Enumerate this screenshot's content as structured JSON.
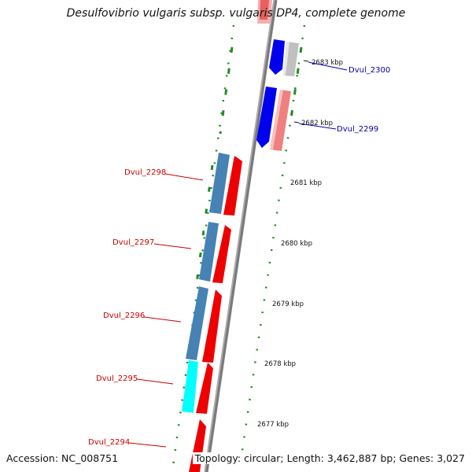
{
  "title": "Desulfovibrio vulgaris subsp. vulgaris DP4, complete genome",
  "footer": {
    "accession": "Accession: NC_008751",
    "summary": "Topology: circular; Length: 3,462,887 bp; Genes: 3,027"
  },
  "colors": {
    "forward_cds": "#ff0000",
    "forward_cds_light": "#f08080",
    "reverse_cds": "#0000ff",
    "reverse_cds_light": "#c0c0c0",
    "orf_blue": "#4682b4",
    "orf_cyan": "#00ffff",
    "backbone": "#808080",
    "gc_dots": "#228b22",
    "forward_label": "#cc0000",
    "reverse_label": "#0000aa"
  },
  "scale_ticks": [
    "2683 kbp",
    "2682 kbp",
    "2681 kbp",
    "2680 kbp",
    "2679 kbp",
    "2678 kbp",
    "2677 kbp"
  ],
  "genes": [
    {
      "name": "Dvul_2300",
      "strand": "reverse"
    },
    {
      "name": "Dvul_2299",
      "strand": "reverse"
    },
    {
      "name": "Dvul_2298",
      "strand": "forward"
    },
    {
      "name": "Dvul_2297",
      "strand": "forward"
    },
    {
      "name": "Dvul_2296",
      "strand": "forward"
    },
    {
      "name": "Dvul_2295",
      "strand": "forward"
    },
    {
      "name": "Dvul_2294",
      "strand": "forward"
    }
  ]
}
